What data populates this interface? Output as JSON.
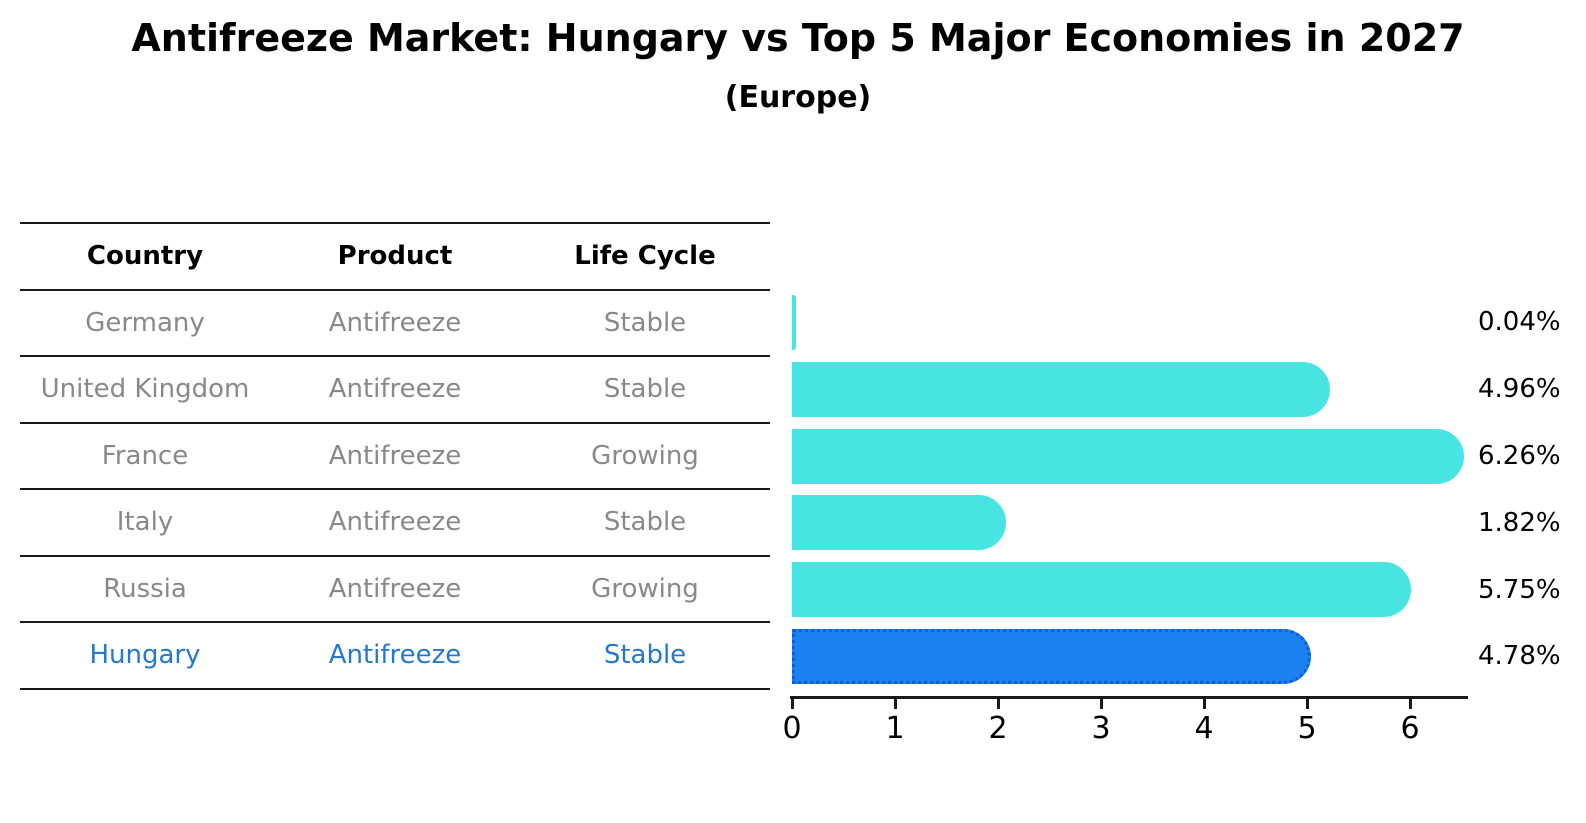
{
  "title": "Antifreeze Market: Hungary vs Top 5 Major Economies in 2027",
  "subtitle": "(Europe)",
  "table": {
    "headers": [
      "Country",
      "Product",
      "Life Cycle"
    ],
    "rows": [
      {
        "country": "Germany",
        "product": "Antifreeze",
        "life_cycle": "Stable",
        "highlight": false
      },
      {
        "country": "United Kingdom",
        "product": "Antifreeze",
        "life_cycle": "Stable",
        "highlight": false
      },
      {
        "country": "France",
        "product": "Antifreeze",
        "life_cycle": "Growing",
        "highlight": false
      },
      {
        "country": "Italy",
        "product": "Antifreeze",
        "life_cycle": "Stable",
        "highlight": false
      },
      {
        "country": "Russia",
        "product": "Antifreeze",
        "life_cycle": "Growing",
        "highlight": false
      },
      {
        "country": "Hungary",
        "product": "Antifreeze",
        "life_cycle": "Stable",
        "highlight": true
      }
    ]
  },
  "chart_data": {
    "type": "bar",
    "orientation": "horizontal",
    "categories": [
      "Germany",
      "United Kingdom",
      "France",
      "Italy",
      "Russia",
      "Hungary"
    ],
    "values": [
      0.04,
      4.96,
      6.26,
      1.82,
      5.75,
      4.78
    ],
    "value_labels": [
      "0.04%",
      "4.96%",
      "6.26%",
      "1.82%",
      "5.75%",
      "4.78%"
    ],
    "x_ticks": [
      "0",
      "1",
      "2",
      "3",
      "4",
      "5",
      "6"
    ],
    "xlim": [
      0,
      6.6
    ],
    "grid": false,
    "legend": false,
    "highlight_category": "Hungary",
    "bar_color": "#47E4E1",
    "highlight_color": "#1B80F0",
    "highlight_border_color": "#0C5ED8"
  },
  "colors": {
    "line": "#1a1a1a",
    "header_text": "#000000",
    "row_text": "#898989",
    "highlight_text": "#2478cf"
  }
}
